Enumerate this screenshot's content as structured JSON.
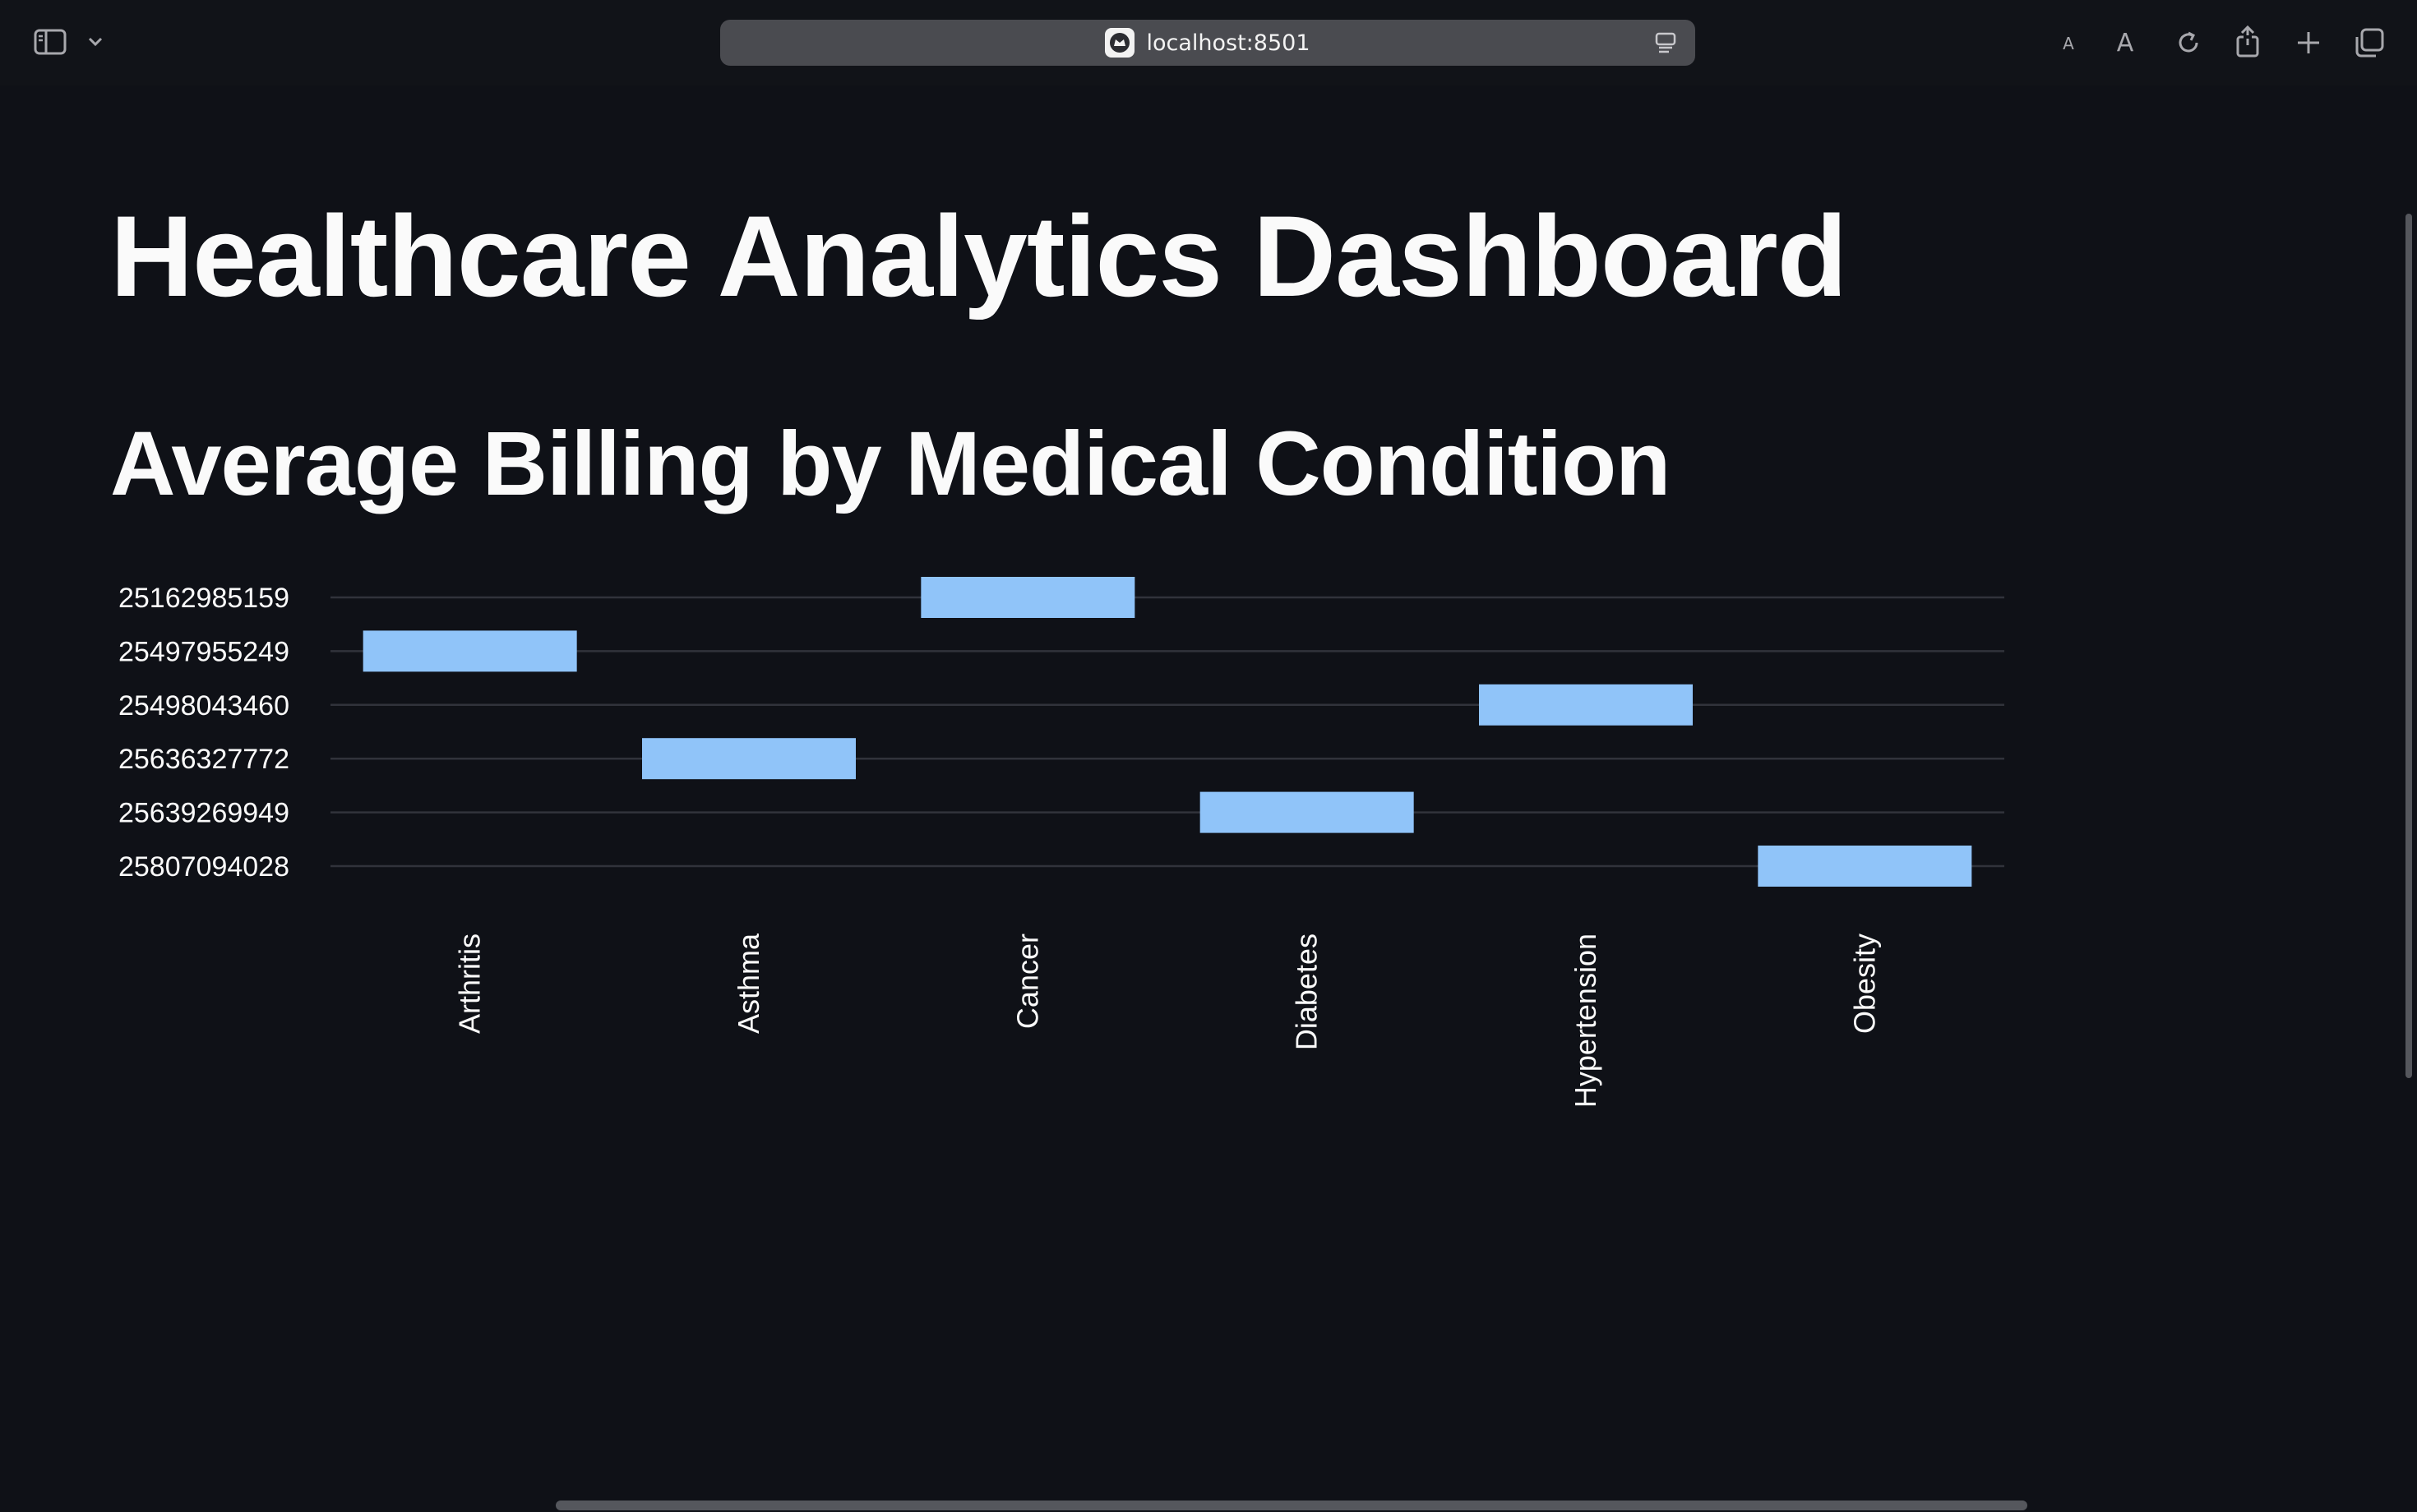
{
  "browser": {
    "address": "localhost:8501"
  },
  "page": {
    "title": "Healthcare Analytics Dashboard",
    "section_title": "Average Billing by Medical Condition"
  },
  "chart_data": {
    "type": "bar",
    "title": "",
    "xlabel": "",
    "ylabel": "",
    "y_axis_kind": "categorical",
    "categories": [
      "Arthritis",
      "Asthma",
      "Cancer",
      "Diabetes",
      "Hypertension",
      "Obesity"
    ],
    "y_tick_labels": [
      "25162985159",
      "25497955249",
      "25498043460",
      "25636327772",
      "25639269949",
      "25807094028"
    ],
    "values": [
      "25497955249",
      "25636327772",
      "25162985159",
      "25639269949",
      "25498043460",
      "25807094028"
    ],
    "bar_color": "#90c4f9",
    "grid": true,
    "legend": "none"
  },
  "colors": {
    "background": "#0f1117",
    "text": "#fafafa",
    "gridline": "#31333b",
    "bar": "#90c4f9"
  }
}
